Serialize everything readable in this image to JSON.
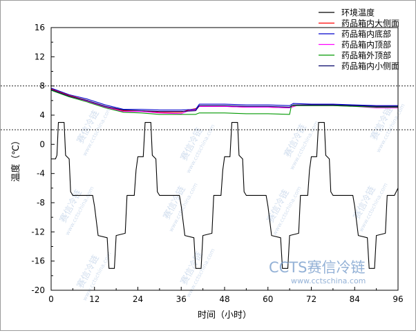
{
  "chart_data": {
    "type": "line",
    "title": "",
    "xlabel": "时间（小时）",
    "ylabel": "温度（℃）",
    "xlim": [
      0,
      96
    ],
    "ylim": [
      -20,
      16
    ],
    "xticks": [
      0,
      12,
      24,
      36,
      48,
      60,
      72,
      84,
      96
    ],
    "yticks": [
      -20,
      -16,
      -12,
      -8,
      -4,
      0,
      4,
      8,
      12,
      16
    ],
    "grid": false,
    "legend_position": "top-right",
    "reference_lines": [
      8,
      2
    ],
    "series": [
      {
        "name": "环境温度",
        "color": "#000000",
        "points": [
          [
            0,
            -2
          ],
          [
            1.2,
            -2
          ],
          [
            1.6,
            -1.5
          ],
          [
            2,
            3
          ],
          [
            3.6,
            3
          ],
          [
            4,
            -1.5
          ],
          [
            5,
            -2
          ],
          [
            5.4,
            -6.5
          ],
          [
            6,
            -7
          ],
          [
            11.5,
            -7
          ],
          [
            12,
            -8.5
          ],
          [
            13,
            -12.5
          ],
          [
            15.5,
            -12.8
          ],
          [
            16,
            -17
          ],
          [
            17.5,
            -17
          ],
          [
            18,
            -12.5
          ],
          [
            20.5,
            -12.2
          ],
          [
            21,
            -7
          ],
          [
            23,
            -7
          ],
          [
            23.5,
            -3.5
          ],
          [
            24,
            -1.7
          ],
          [
            25.5,
            -1.7
          ],
          [
            26,
            3
          ],
          [
            27.6,
            3
          ],
          [
            28,
            -1.5
          ],
          [
            29,
            -2
          ],
          [
            29.4,
            -6.5
          ],
          [
            30,
            -7
          ],
          [
            35.5,
            -7
          ],
          [
            36,
            -8.5
          ],
          [
            37,
            -12.5
          ],
          [
            39.5,
            -12.8
          ],
          [
            40,
            -17
          ],
          [
            41.5,
            -17
          ],
          [
            42,
            -12.5
          ],
          [
            44.5,
            -12.2
          ],
          [
            45,
            -7
          ],
          [
            47,
            -7
          ],
          [
            47.5,
            -3.5
          ],
          [
            48,
            -1.7
          ],
          [
            49.5,
            -1.7
          ],
          [
            50,
            3
          ],
          [
            51.6,
            3
          ],
          [
            52,
            -1.5
          ],
          [
            53,
            -2
          ],
          [
            53.4,
            -6.5
          ],
          [
            54,
            -7
          ],
          [
            59.5,
            -7
          ],
          [
            60,
            -8.5
          ],
          [
            61,
            -12.5
          ],
          [
            63.5,
            -12.8
          ],
          [
            64,
            -17
          ],
          [
            65.5,
            -17
          ],
          [
            66,
            -12.5
          ],
          [
            68.5,
            -12.2
          ],
          [
            69,
            -7
          ],
          [
            71,
            -7
          ],
          [
            71.5,
            -3.5
          ],
          [
            72,
            -1.7
          ],
          [
            73.5,
            -1.7
          ],
          [
            74,
            3
          ],
          [
            75.6,
            3
          ],
          [
            76,
            -1.5
          ],
          [
            77,
            -2
          ],
          [
            77.4,
            -6.5
          ],
          [
            78,
            -7
          ],
          [
            83.5,
            -7
          ],
          [
            84,
            -8.5
          ],
          [
            85,
            -12.5
          ],
          [
            87.5,
            -12.8
          ],
          [
            88,
            -17
          ],
          [
            89.5,
            -17
          ],
          [
            90,
            -12.5
          ],
          [
            92.5,
            -12.2
          ],
          [
            93,
            -7
          ],
          [
            95,
            -7
          ],
          [
            96,
            -6
          ]
        ]
      },
      {
        "name": "药品箱内大侧面",
        "color": "#ff0000",
        "points": [
          [
            0,
            7.6
          ],
          [
            5,
            6.7
          ],
          [
            10,
            6
          ],
          [
            15,
            5.2
          ],
          [
            20,
            4.6
          ],
          [
            25,
            4.6
          ],
          [
            30,
            4.4
          ],
          [
            36,
            4.4
          ],
          [
            38,
            4.7
          ],
          [
            40,
            4.9
          ],
          [
            41,
            5.2
          ],
          [
            48,
            5.2
          ],
          [
            54,
            5.1
          ],
          [
            60,
            5.1
          ],
          [
            66,
            5.0
          ],
          [
            68,
            5.4
          ],
          [
            72,
            5.4
          ],
          [
            78,
            5.4
          ],
          [
            84,
            5.3
          ],
          [
            90,
            5.2
          ],
          [
            96,
            5.2
          ]
        ]
      },
      {
        "name": "药品箱内底部",
        "color": "#0000cc",
        "points": [
          [
            0,
            7.7
          ],
          [
            5,
            6.8
          ],
          [
            10,
            6.2
          ],
          [
            15,
            5.4
          ],
          [
            20,
            4.8
          ],
          [
            25,
            4.8
          ],
          [
            30,
            4.7
          ],
          [
            36,
            4.7
          ],
          [
            40,
            4.8
          ],
          [
            41,
            5.5
          ],
          [
            48,
            5.5
          ],
          [
            54,
            5.4
          ],
          [
            60,
            5.4
          ],
          [
            66,
            5.3
          ],
          [
            67,
            5.6
          ],
          [
            72,
            5.5
          ],
          [
            78,
            5.5
          ],
          [
            84,
            5.4
          ],
          [
            90,
            5.3
          ],
          [
            96,
            5.3
          ]
        ]
      },
      {
        "name": "药品箱内顶部",
        "color": "#ff00ff",
        "points": [
          [
            0,
            7.5
          ],
          [
            5,
            6.6
          ],
          [
            10,
            5.9
          ],
          [
            15,
            5.1
          ],
          [
            20,
            4.5
          ],
          [
            25,
            4.5
          ],
          [
            30,
            4.3
          ],
          [
            36,
            4.2
          ],
          [
            38,
            4.6
          ],
          [
            40,
            4.7
          ],
          [
            41,
            5.2
          ],
          [
            48,
            5.2
          ],
          [
            54,
            5.1
          ],
          [
            60,
            5.1
          ],
          [
            66,
            5.0
          ],
          [
            68,
            5.3
          ],
          [
            72,
            5.3
          ],
          [
            78,
            5.3
          ],
          [
            84,
            5.2
          ],
          [
            90,
            5.0
          ],
          [
            96,
            5.0
          ]
        ]
      },
      {
        "name": "药品箱外顶部",
        "color": "#009900",
        "points": [
          [
            0,
            7.4
          ],
          [
            5,
            6.5
          ],
          [
            10,
            5.8
          ],
          [
            15,
            5.0
          ],
          [
            20,
            4.4
          ],
          [
            25,
            4.3
          ],
          [
            30,
            4.1
          ],
          [
            36,
            4.1
          ],
          [
            40,
            4.1
          ],
          [
            41,
            4.3
          ],
          [
            48,
            4.3
          ],
          [
            54,
            4.2
          ],
          [
            60,
            4.2
          ],
          [
            66,
            4.1
          ],
          [
            66.5,
            5.3
          ],
          [
            72,
            5.3
          ],
          [
            78,
            5.3
          ],
          [
            84,
            5.2
          ],
          [
            90,
            5.1
          ],
          [
            96,
            5.1
          ]
        ]
      },
      {
        "name": "药品箱内小侧面",
        "color": "#000066",
        "points": [
          [
            0,
            7.5
          ],
          [
            5,
            6.6
          ],
          [
            10,
            6.0
          ],
          [
            15,
            5.2
          ],
          [
            20,
            4.7
          ],
          [
            25,
            4.6
          ],
          [
            30,
            4.5
          ],
          [
            36,
            4.5
          ],
          [
            40,
            4.6
          ],
          [
            41,
            5.3
          ],
          [
            48,
            5.3
          ],
          [
            54,
            5.2
          ],
          [
            60,
            5.2
          ],
          [
            66,
            5.1
          ],
          [
            67,
            5.4
          ],
          [
            72,
            5.4
          ],
          [
            78,
            5.4
          ],
          [
            84,
            5.3
          ],
          [
            90,
            5.2
          ],
          [
            96,
            5.2
          ]
        ]
      }
    ]
  },
  "watermark": {
    "logo_text": "CCTS赛信冷链",
    "url_text": "www.cctschina.com",
    "tile_text": "赛信冷链",
    "tile_url": "www.cctschina.com"
  }
}
